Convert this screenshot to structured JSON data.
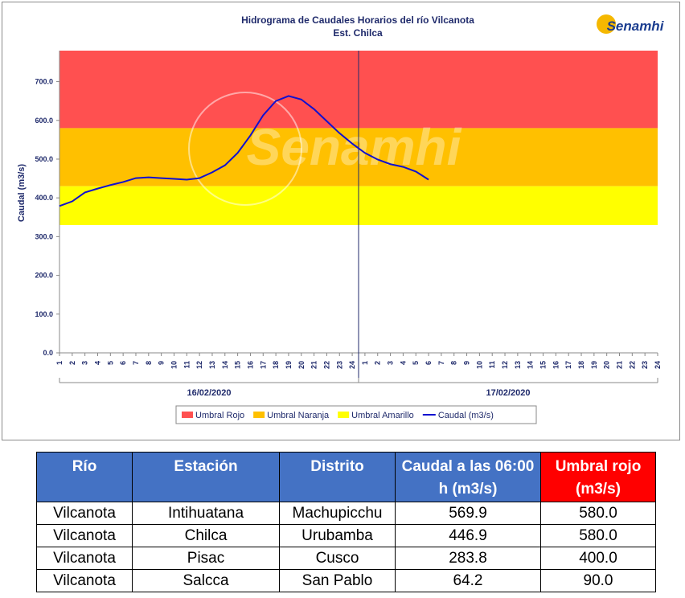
{
  "chart_data": {
    "type": "line",
    "title": "Hidrograma de Caudales Horarios del río Vilcanota",
    "subtitle": "Est. Chilca",
    "logo": "Senamhi",
    "y_label": "Caudal (m3/s)",
    "categories": [
      "1",
      "2",
      "3",
      "4",
      "5",
      "6",
      "7",
      "8",
      "9",
      "10",
      "11",
      "12",
      "13",
      "14",
      "15",
      "16",
      "17",
      "18",
      "19",
      "20",
      "21",
      "22",
      "23",
      "24",
      "1",
      "2",
      "3",
      "4",
      "5",
      "6",
      "7",
      "8",
      "9",
      "10",
      "11",
      "12",
      "13",
      "14",
      "15",
      "16",
      "17",
      "18",
      "19",
      "20",
      "21",
      "22",
      "23",
      "24"
    ],
    "groups": [
      "16/02/2020",
      "17/02/2020"
    ],
    "ylim": [
      0,
      780
    ],
    "yticks": [
      {
        "value": 0,
        "label": "0.0"
      },
      {
        "value": 100,
        "label": "100.0"
      },
      {
        "value": 200,
        "label": "200.0"
      },
      {
        "value": 300,
        "label": "300.0"
      },
      {
        "value": 400,
        "label": "400.0"
      },
      {
        "value": 500,
        "label": "500.0"
      },
      {
        "value": 600,
        "label": "600.0"
      },
      {
        "value": 700,
        "label": "700.0"
      }
    ],
    "bands": [
      {
        "name": "Umbral Rojo",
        "color": "#ff5050",
        "from": 580,
        "to": 780
      },
      {
        "name": "Umbral Naranja",
        "color": "#ffc000",
        "from": 430,
        "to": 580
      },
      {
        "name": "Umbral Amarillo",
        "color": "#ffff00",
        "from": 330,
        "to": 430
      }
    ],
    "series": [
      {
        "name": "Caudal (m3/s)",
        "color": "#1010d0",
        "values": [
          379,
          391,
          414,
          424,
          433,
          441,
          451,
          453,
          451,
          449,
          447,
          451,
          466,
          484,
          516,
          561,
          613,
          650,
          663,
          654,
          629,
          598,
          567,
          540,
          516,
          499,
          487,
          480,
          468,
          447,
          null,
          null,
          null,
          null,
          null,
          null,
          null,
          null,
          null,
          null,
          null,
          null,
          null,
          null,
          null,
          null,
          null,
          null
        ]
      }
    ]
  },
  "table": {
    "header": [
      "Río",
      "Estación",
      "Distrito",
      "Caudal a las 06:00 h (m3/s)",
      "Umbral rojo (m3/s)"
    ],
    "rows": [
      [
        "Vilcanota",
        "Intihuatana",
        "Machupicchu",
        "569.9",
        "580.0"
      ],
      [
        "Vilcanota",
        "Chilca",
        "Urubamba",
        "446.9",
        "580.0"
      ],
      [
        "Vilcanota",
        "Pisac",
        "Cusco",
        "283.8",
        "400.0"
      ],
      [
        "Vilcanota",
        "Salcca",
        "San Pablo",
        "64.2",
        "90.0"
      ]
    ]
  }
}
